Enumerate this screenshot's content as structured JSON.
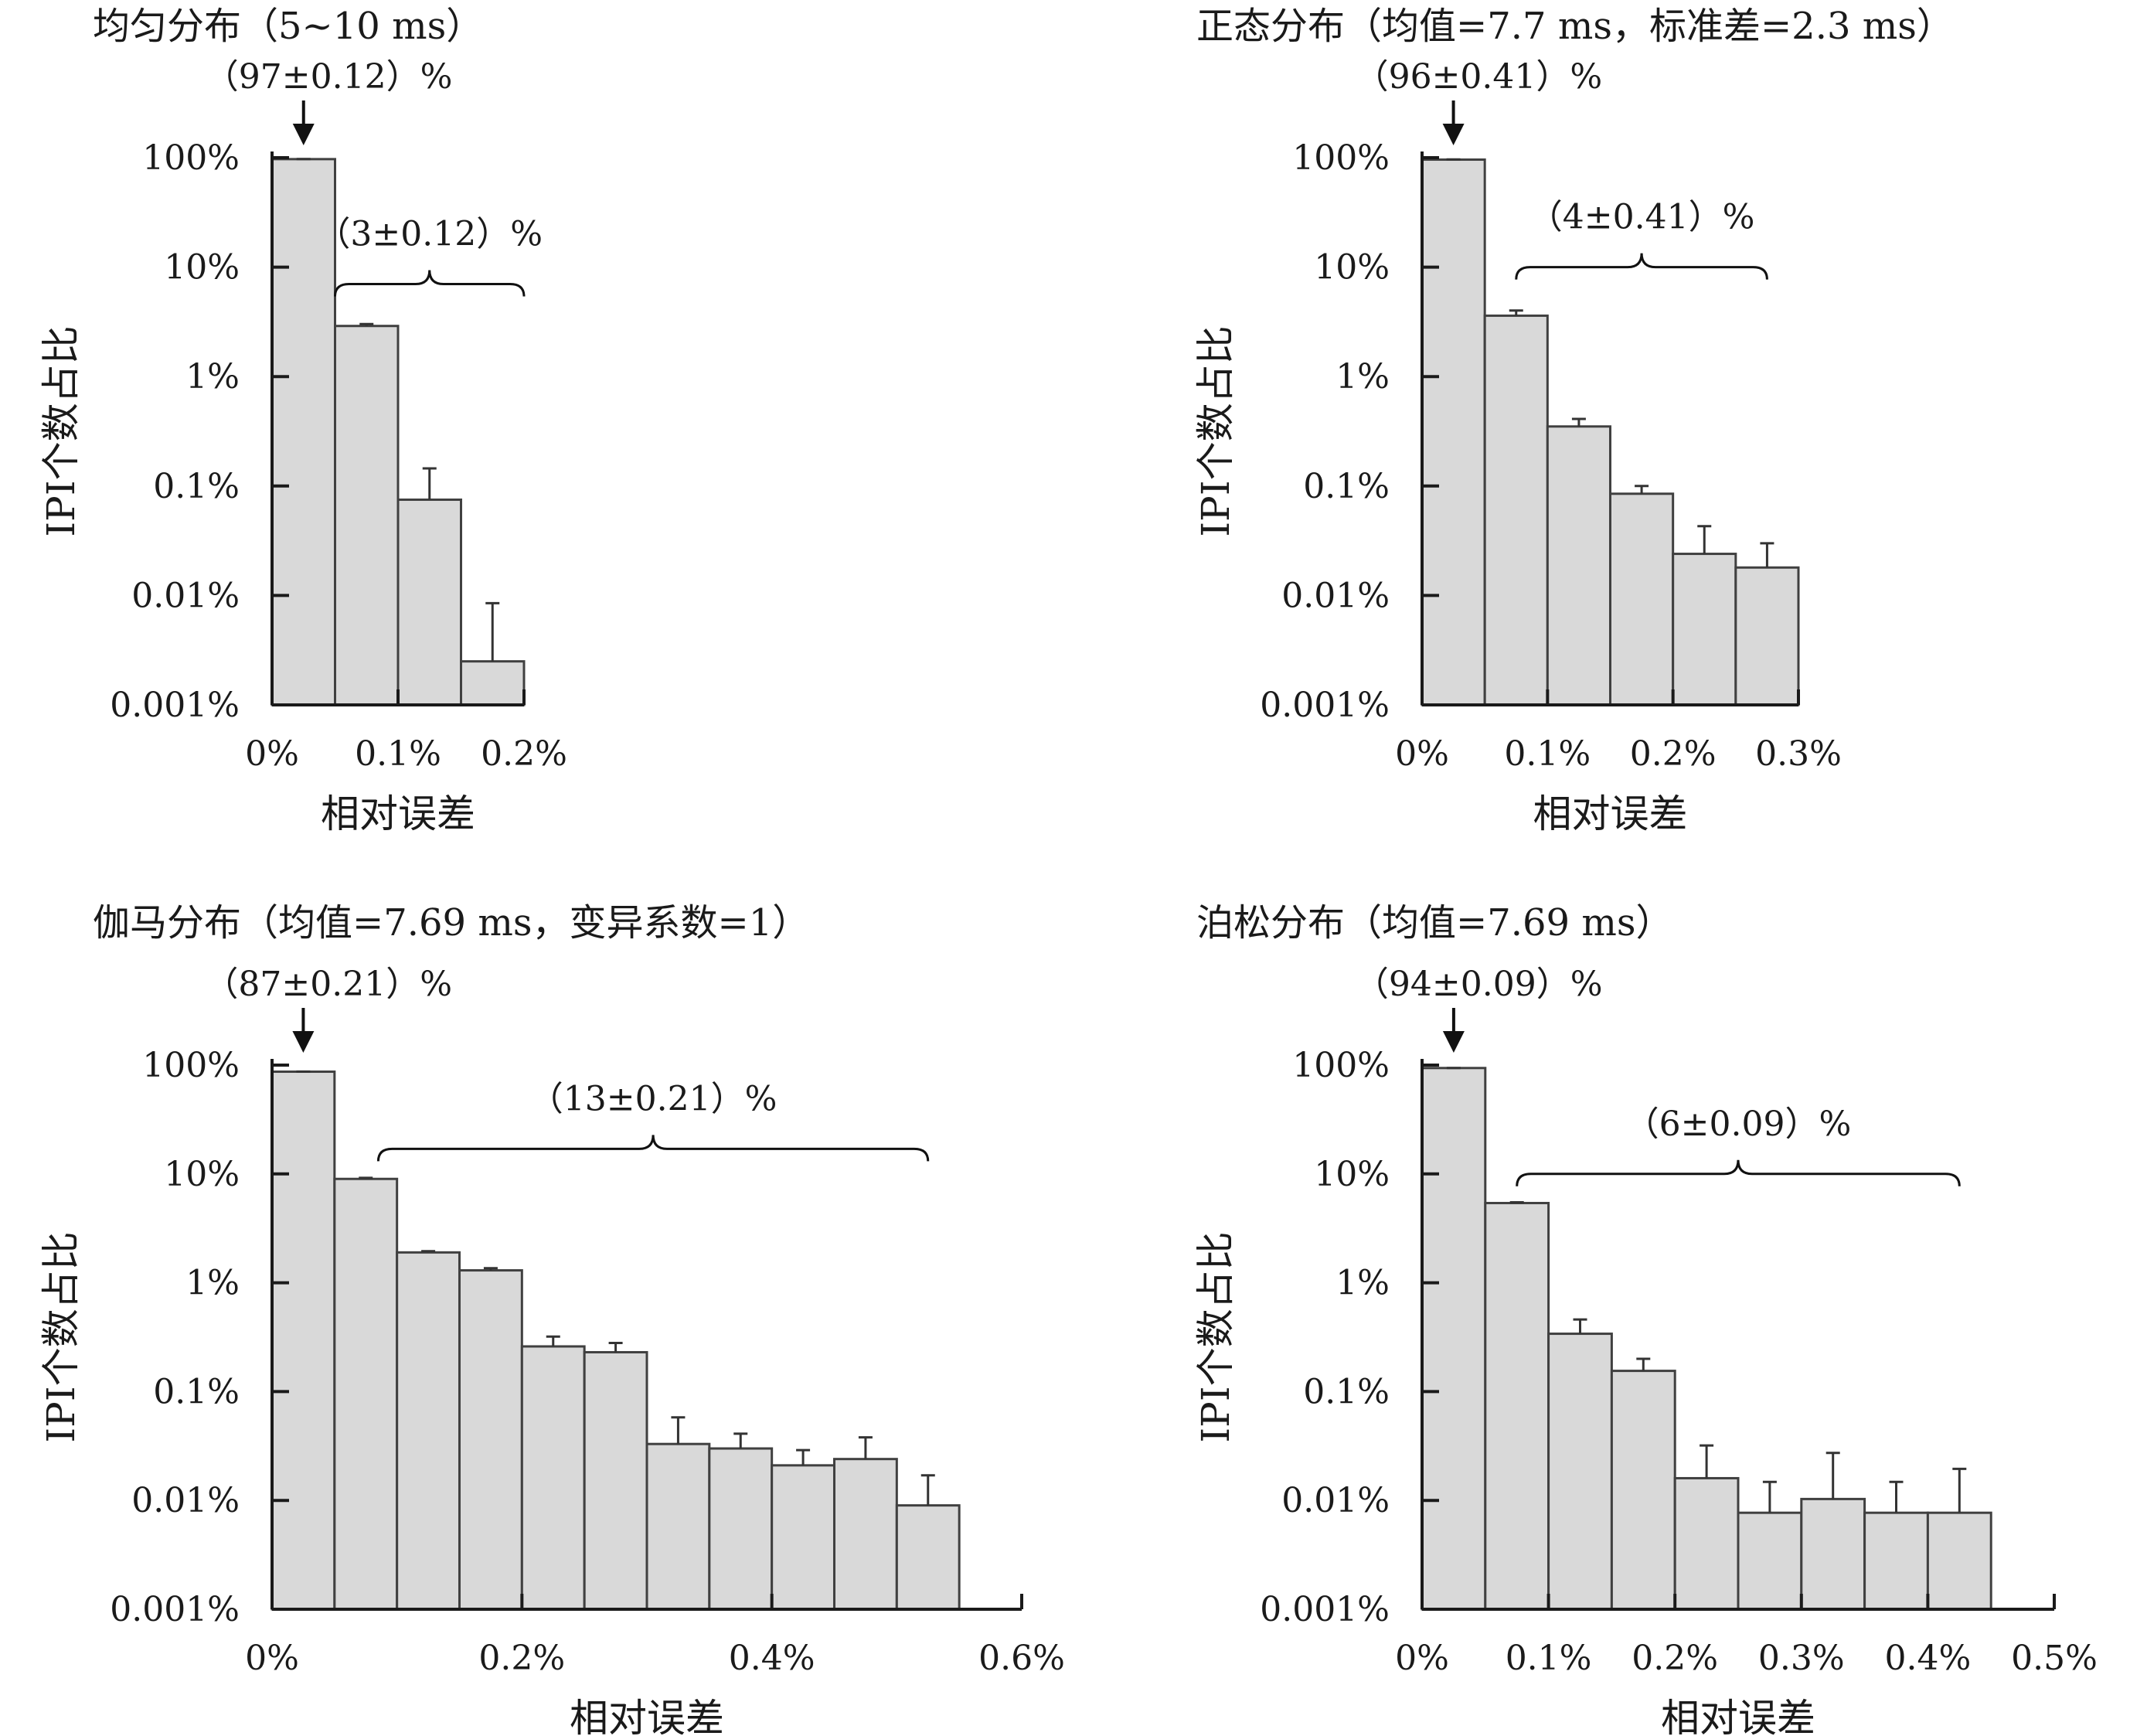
{
  "chart_data": [
    {
      "type": "bar",
      "title": "均匀分布（5~10 ms）",
      "xlabel": "相对误差",
      "ylabel": "IPI个数占比",
      "yscale": "log",
      "ylim": [
        0.001,
        100
      ],
      "yticks": [
        "0.001%",
        "0.01%",
        "0.1%",
        "1%",
        "10%",
        "100%"
      ],
      "xlim": [
        0,
        0.2
      ],
      "xticks": [
        "0%",
        "0.1%",
        "0.2%"
      ],
      "bin_width": 0.05,
      "values": [
        97,
        2.9,
        0.075,
        0.0025
      ],
      "errors": [
        0.12,
        0.12,
        0.07,
        0.006
      ],
      "annotation_peak": "（97±0.12）%",
      "annotation_rest": "（3±0.12）%",
      "brace_range": [
        0.05,
        0.2
      ],
      "brace_y": 7,
      "grid": false,
      "legend": "none"
    },
    {
      "type": "bar",
      "title": "正态分布（均值=7.7 ms，标准差=2.3 ms）",
      "xlabel": "相对误差",
      "ylabel": "IPI个数占比",
      "yscale": "log",
      "ylim": [
        0.001,
        100
      ],
      "yticks": [
        "0.001%",
        "0.01%",
        "0.1%",
        "1%",
        "10%",
        "100%"
      ],
      "xlim": [
        0,
        0.3
      ],
      "xticks": [
        "0%",
        "0.1%",
        "0.2%",
        "0.3%"
      ],
      "bin_width": 0.05,
      "values": [
        96,
        3.6,
        0.35,
        0.085,
        0.024,
        0.018
      ],
      "errors": [
        0.41,
        0.41,
        0.06,
        0.015,
        0.019,
        0.012
      ],
      "annotation_peak": "（96±0.41）%",
      "annotation_rest": "（4±0.41）%",
      "brace_range": [
        0.075,
        0.275
      ],
      "brace_y": 10,
      "grid": false,
      "legend": "none"
    },
    {
      "type": "bar",
      "title": "伽马分布（均值=7.69 ms，变异系数=1）",
      "xlabel": "相对误差",
      "ylabel": "IPI个数占比",
      "yscale": "log",
      "ylim": [
        0.001,
        100
      ],
      "yticks": [
        "0.001%",
        "0.01%",
        "0.1%",
        "1%",
        "10%",
        "100%"
      ],
      "xlim": [
        0,
        0.6
      ],
      "xticks": [
        "0%",
        "0.2%",
        "0.4%",
        "0.6%"
      ],
      "bin_width": 0.05,
      "values": [
        87,
        9.0,
        1.9,
        1.3,
        0.26,
        0.23,
        0.033,
        0.03,
        0.021,
        0.024,
        0.009
      ],
      "errors": [
        0.21,
        0.21,
        0.05,
        0.06,
        0.06,
        0.05,
        0.025,
        0.011,
        0.008,
        0.014,
        0.008
      ],
      "annotation_peak": "（87±0.21）%",
      "annotation_rest": "（13±0.21）%",
      "brace_range": [
        0.085,
        0.525
      ],
      "brace_y": 17,
      "grid": false,
      "legend": "none"
    },
    {
      "type": "bar",
      "title": "泊松分布（均值=7.69 ms）",
      "xlabel": "相对误差",
      "ylabel": "IPI个数占比",
      "yscale": "log",
      "ylim": [
        0.001,
        100
      ],
      "yticks": [
        "0.001%",
        "0.01%",
        "0.1%",
        "1%",
        "10%",
        "100%"
      ],
      "xlim": [
        0,
        0.5
      ],
      "xticks": [
        "0%",
        "0.1%",
        "0.2%",
        "0.3%",
        "0.4%",
        "0.5%"
      ],
      "bin_width": 0.05,
      "values": [
        94,
        5.4,
        0.34,
        0.155,
        0.016,
        0.0077,
        0.0103,
        0.0077,
        0.0077
      ],
      "errors": [
        0.09,
        0.09,
        0.12,
        0.045,
        0.016,
        0.0071,
        0.017,
        0.0071,
        0.0118
      ],
      "annotation_peak": "（94±0.09）%",
      "annotation_rest": "（6±0.09）%",
      "brace_range": [
        0.075,
        0.425
      ],
      "brace_y": 10,
      "grid": false,
      "legend": "none"
    }
  ],
  "colors": {
    "bar_fill": "#d9d9d9",
    "bar_stroke": "#404040",
    "axis": "#1a1a1a",
    "text": "#1a1a1a"
  }
}
